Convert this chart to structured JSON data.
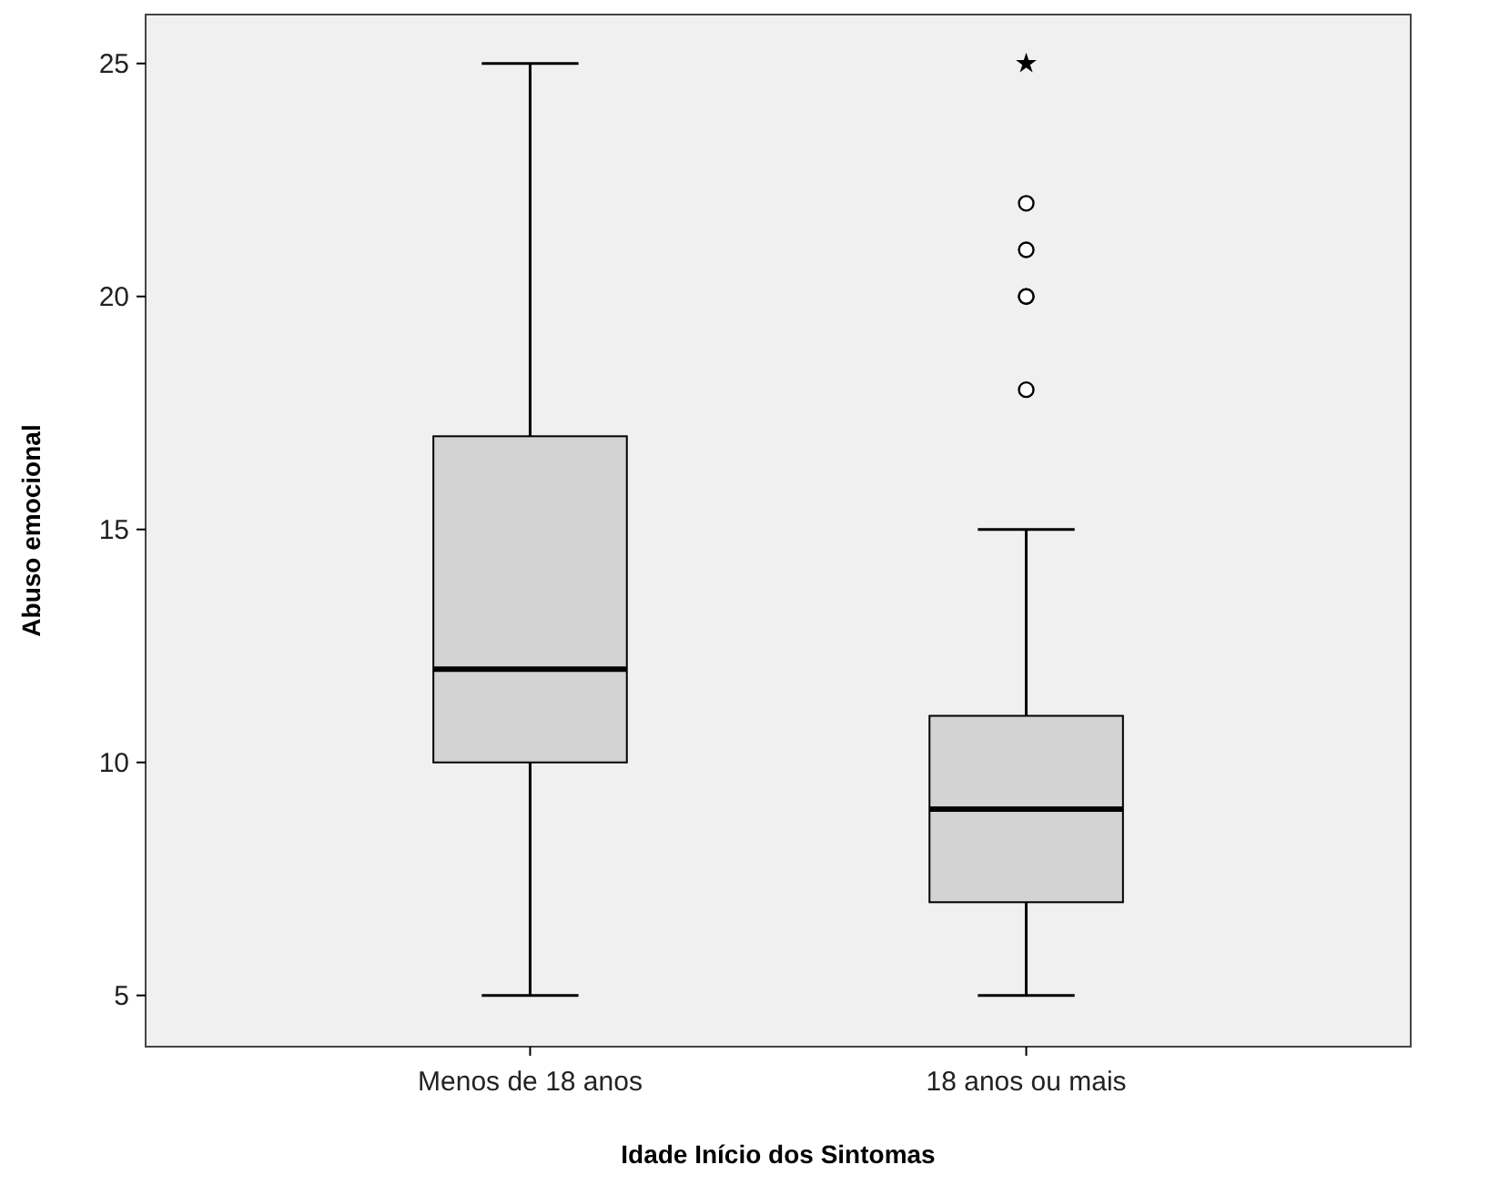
{
  "chart_data": {
    "type": "box",
    "xlabel": "Idade Início dos Sintomas",
    "ylabel": "Abuso emocional",
    "categories": [
      "Menos de 18 anos",
      "18 anos ou mais"
    ],
    "color": "#d3d3d3",
    "boxes": [
      {
        "low": 5,
        "q1": 10,
        "median": 12,
        "q3": 17,
        "high": 25
      },
      {
        "low": 5,
        "q1": 7,
        "median": 9,
        "q3": 11,
        "high": 15,
        "outliers": [
          18,
          20,
          20,
          21,
          22,
          25
        ]
      }
    ],
    "ylim": [
      3.9,
      26.05
    ],
    "yticks": [
      5,
      10,
      15,
      20,
      25
    ],
    "grid": false
  }
}
